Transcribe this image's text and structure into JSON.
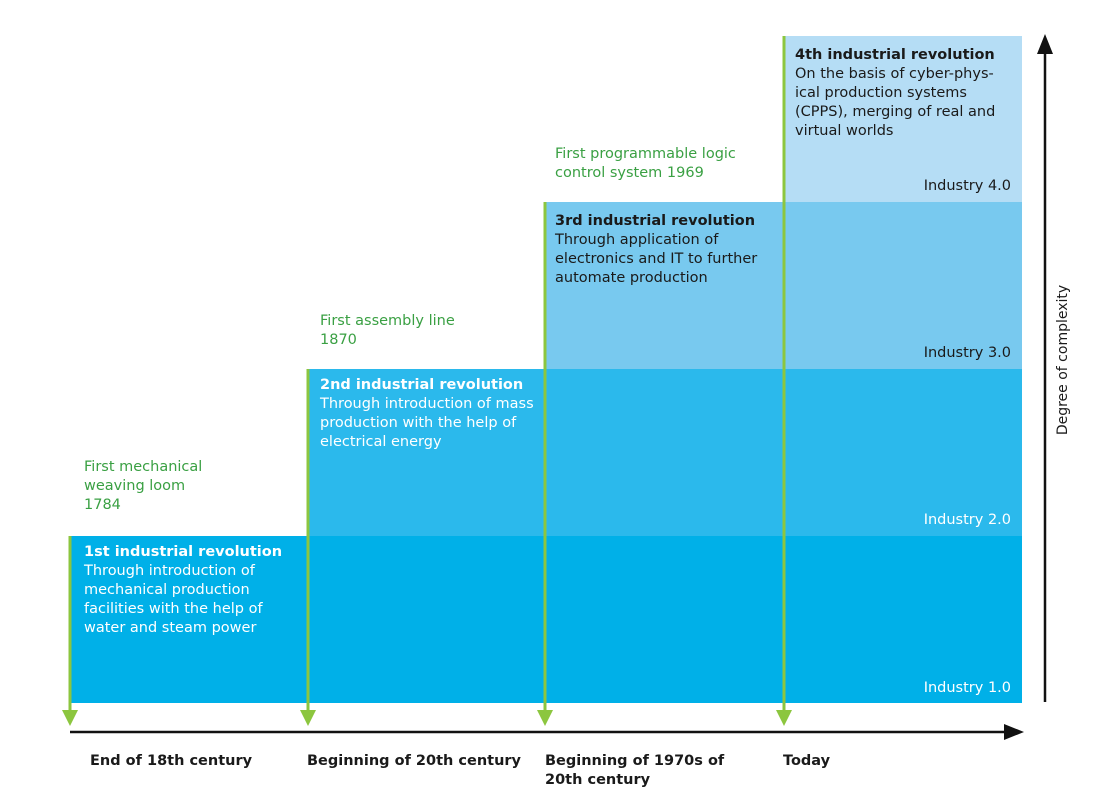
{
  "revolutions": [
    {
      "title": "1st industrial revolution",
      "desc": "Through introduction of mechanical production facilities with the help of water and steam power",
      "industry": "Industry 1.0"
    },
    {
      "title": "2nd industrial revolution",
      "desc": "Through introduction of mass production with the help of electrical energy",
      "industry": "Industry 2.0"
    },
    {
      "title": "3rd industrial revolution",
      "desc": "Through application of electronics and IT to further automate production",
      "industry": "Industry 3.0"
    },
    {
      "title": "4th industrial revolution",
      "desc": "On the basis of cyber-phys-ical production systems (CPPS), merging of real and virtual worlds",
      "industry": "Industry 4.0"
    }
  ],
  "milestones": [
    "First mechanical\nweaving loom\n1784",
    "First assembly line\n1870",
    "First programmable logic\ncontrol system 1969"
  ],
  "periods": [
    "End of 18th century",
    "Beginning of 20th century",
    "Beginning of 1970s of 20th century",
    "Today"
  ],
  "y_axis_label": "Degree of complexity",
  "colors": {
    "band1": "#00b0e8",
    "band2": "#2bb9ec",
    "band3": "#78c9ef",
    "band4": "#b5ddf5",
    "milestone_green": "#3aa043",
    "marker_line": "#8cc63f"
  }
}
